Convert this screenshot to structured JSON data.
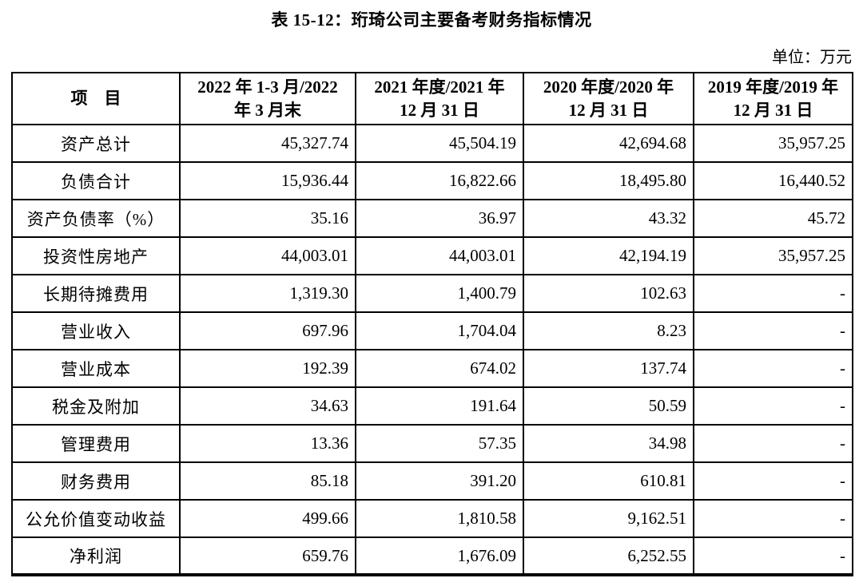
{
  "title": "表 15-12：珩琦公司主要备考财务指标情况",
  "unit_label": "单位：万元",
  "colors": {
    "background": "#ffffff",
    "text": "#000000",
    "border": "#000000"
  },
  "table": {
    "columns": [
      {
        "lines": [
          "项　目"
        ]
      },
      {
        "lines": [
          "2022 年 1-3 月/2022",
          "年 3 月末"
        ]
      },
      {
        "lines": [
          "2021 年度/2021 年",
          "12 月 31 日"
        ]
      },
      {
        "lines": [
          "2020 年度/2020 年",
          "12 月 31 日"
        ]
      },
      {
        "lines": [
          "2019 年度/2019 年",
          "12 月 31 日"
        ]
      }
    ],
    "rows": [
      {
        "label": "资产总计",
        "values": [
          "45,327.74",
          "45,504.19",
          "42,694.68",
          "35,957.25"
        ]
      },
      {
        "label": "负债合计",
        "values": [
          "15,936.44",
          "16,822.66",
          "18,495.80",
          "16,440.52"
        ]
      },
      {
        "label": "资产负债率（%）",
        "values": [
          "35.16",
          "36.97",
          "43.32",
          "45.72"
        ]
      },
      {
        "label": "投资性房地产",
        "values": [
          "44,003.01",
          "44,003.01",
          "42,194.19",
          "35,957.25"
        ]
      },
      {
        "label": "长期待摊费用",
        "values": [
          "1,319.30",
          "1,400.79",
          "102.63",
          "-"
        ]
      },
      {
        "label": "营业收入",
        "values": [
          "697.96",
          "1,704.04",
          "8.23",
          "-"
        ]
      },
      {
        "label": "营业成本",
        "values": [
          "192.39",
          "674.02",
          "137.74",
          "-"
        ]
      },
      {
        "label": "税金及附加",
        "values": [
          "34.63",
          "191.64",
          "50.59",
          "-"
        ]
      },
      {
        "label": "管理费用",
        "values": [
          "13.36",
          "57.35",
          "34.98",
          "-"
        ]
      },
      {
        "label": "财务费用",
        "values": [
          "85.18",
          "391.20",
          "610.81",
          "-"
        ]
      },
      {
        "label": "公允价值变动收益",
        "values": [
          "499.66",
          "1,810.58",
          "9,162.51",
          "-"
        ]
      },
      {
        "label": "净利润",
        "values": [
          "659.76",
          "1,676.09",
          "6,252.55",
          "-"
        ]
      }
    ]
  }
}
